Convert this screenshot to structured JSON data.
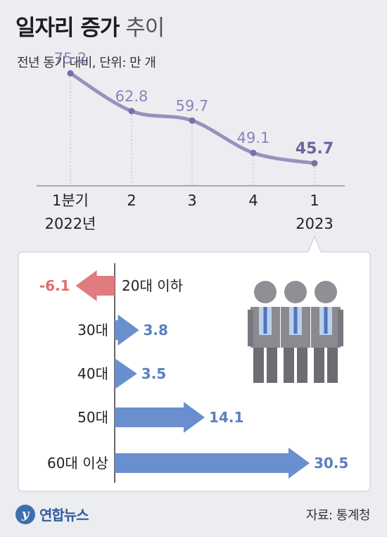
{
  "title": {
    "bold": "일자리 증가",
    "light": "추이"
  },
  "subtitle": "전년 동기 대비, 단위: 만 개",
  "chart_data": [
    {
      "type": "line",
      "categories": [
        "1분기",
        "2",
        "3",
        "4",
        "1"
      ],
      "year_labels": [
        "2022년",
        "",
        "",
        "",
        "2023"
      ],
      "values": [
        75.2,
        62.8,
        59.7,
        49.1,
        45.7
      ],
      "value_labels": [
        "75.2",
        "62.8",
        "59.7",
        "49.1",
        "45.7"
      ],
      "ylim": [
        30,
        90
      ],
      "line_color": "#9b8fbf",
      "label_color": "#8e82b8",
      "last_label_color": "#6f629e",
      "grid": false
    },
    {
      "type": "bar",
      "orientation": "horizontal",
      "categories": [
        "20대 이하",
        "30대",
        "40대",
        "50대",
        "60대 이상"
      ],
      "values": [
        -6.1,
        3.8,
        3.5,
        14.1,
        30.5
      ],
      "value_labels": [
        "-6.1",
        "3.8",
        "3.5",
        "14.1",
        "30.5"
      ],
      "xlim": [
        -6.1,
        30.5
      ],
      "positive_color": "#6a8fcf",
      "negative_color": "#e07b7e"
    }
  ],
  "footer": {
    "logo_mark": "y",
    "logo_text": "연합뉴스",
    "source": "자료: 통계청"
  }
}
